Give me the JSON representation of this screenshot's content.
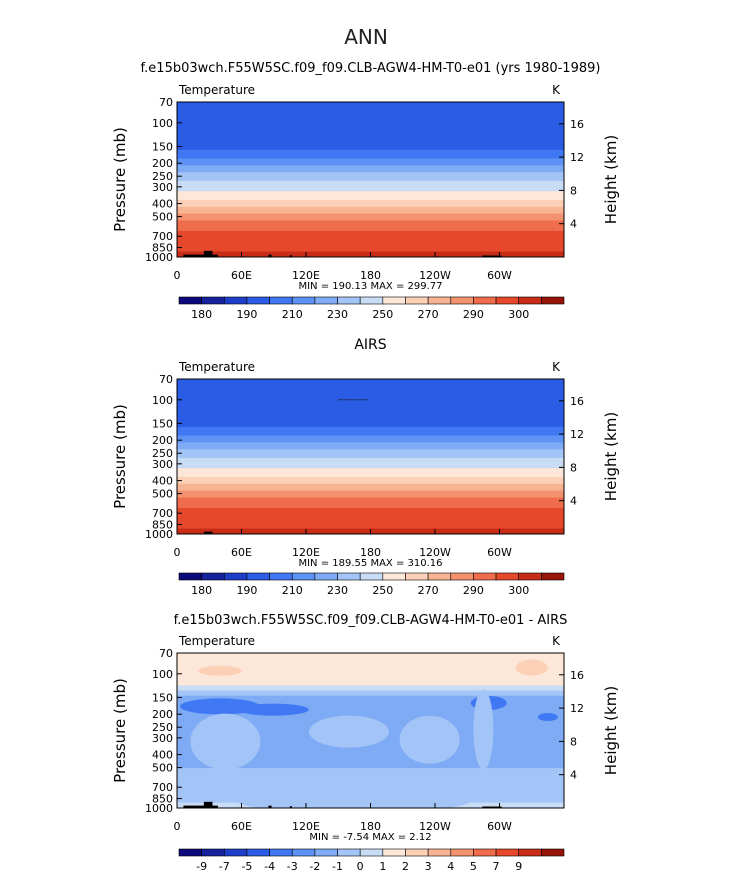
{
  "page_title": "ANN",
  "colors": {
    "temp_scale": [
      "#0c0a7a",
      "#16229c",
      "#1c3ec8",
      "#2a5ce6",
      "#3f78f2",
      "#5d93f4",
      "#7fabf5",
      "#a3c4f6",
      "#c9dcf6",
      "#fde7d8",
      "#fbd0b6",
      "#f8b393",
      "#f4916f",
      "#ef6d4c",
      "#e6482c",
      "#c72c17",
      "#961408"
    ],
    "diff_scale": [
      "#0c0a7a",
      "#16229c",
      "#1c3ec8",
      "#2a5ce6",
      "#3f78f2",
      "#5d93f4",
      "#7fabf5",
      "#a3c4f6",
      "#c9dcf6",
      "#fde7d8",
      "#fbd0b6",
      "#f8b393",
      "#f4916f",
      "#ef6d4c",
      "#e6482c",
      "#c72c17",
      "#961408"
    ],
    "terrain": "#000000"
  },
  "chart_data": [
    {
      "type": "heatmap",
      "title": "f.e15b03wch.F55W5SC.f09_f09.CLB-AGW4-HM-T0-e01 (yrs 1980-1989)",
      "left_label": "Temperature",
      "right_label": "K",
      "ylabel": "Pressure (mb)",
      "ylabel_right": "Height (km)",
      "x_ticks": [
        "0",
        "60E",
        "120E",
        "180",
        "120W",
        "60W"
      ],
      "x_tick_values": [
        0,
        60,
        120,
        180,
        240,
        300
      ],
      "xlim": [
        0,
        360
      ],
      "y_ticks": [
        "70",
        "100",
        "150",
        "200",
        "250",
        "300",
        "400",
        "500",
        "700",
        "850",
        "1000"
      ],
      "y_tick_values": [
        70,
        100,
        150,
        200,
        250,
        300,
        400,
        500,
        700,
        850,
        1000
      ],
      "ylim": [
        70,
        1000
      ],
      "y_scale": "log",
      "height_ticks": [
        "16",
        "12",
        "8",
        "4"
      ],
      "height_tick_values": [
        16,
        12,
        8,
        4
      ],
      "minmax_text": "MIN = 190.13   MAX = 299.77",
      "min": 190.13,
      "max": 299.77,
      "colorbar_labels": [
        "180",
        "190",
        "210",
        "230",
        "250",
        "270",
        "290",
        "300"
      ],
      "colorbar_label_positions": [
        1,
        3,
        5,
        7,
        9,
        11,
        13,
        15
      ],
      "levels_profile": [
        {
          "p": 70,
          "level": 3
        },
        {
          "p": 150,
          "level": 3
        },
        {
          "p": 200,
          "level": 5
        },
        {
          "p": 250,
          "level": 7
        },
        {
          "p": 300,
          "level": 8
        },
        {
          "p": 400,
          "level": 10
        },
        {
          "p": 500,
          "level": 12
        },
        {
          "p": 700,
          "level": 14
        },
        {
          "p": 850,
          "level": 14
        },
        {
          "p": 1000,
          "level": 15
        }
      ],
      "terrain": [
        {
          "lon0": 6,
          "lon1": 38,
          "p_top": 960
        },
        {
          "lon0": 25,
          "lon1": 33,
          "p_top": 900
        },
        {
          "lon0": 85,
          "lon1": 88,
          "p_top": 960
        },
        {
          "lon0": 105,
          "lon1": 107,
          "p_top": 970
        },
        {
          "lon0": 284,
          "lon1": 302,
          "p_top": 975
        }
      ]
    },
    {
      "type": "heatmap",
      "title": "AIRS",
      "left_label": "Temperature",
      "right_label": "K",
      "ylabel": "Pressure (mb)",
      "ylabel_right": "Height (km)",
      "x_ticks": [
        "0",
        "60E",
        "120E",
        "180",
        "120W",
        "60W"
      ],
      "x_tick_values": [
        0,
        60,
        120,
        180,
        240,
        300
      ],
      "xlim": [
        0,
        360
      ],
      "y_ticks": [
        "70",
        "100",
        "150",
        "200",
        "250",
        "300",
        "400",
        "500",
        "700",
        "850",
        "1000"
      ],
      "y_tick_values": [
        70,
        100,
        150,
        200,
        250,
        300,
        400,
        500,
        700,
        850,
        1000
      ],
      "ylim": [
        70,
        1000
      ],
      "y_scale": "log",
      "height_ticks": [
        "16",
        "12",
        "8",
        "4"
      ],
      "height_tick_values": [
        16,
        12,
        8,
        4
      ],
      "minmax_text": "MIN = 189.55   MAX = 310.16",
      "min": 189.55,
      "max": 310.16,
      "colorbar_labels": [
        "180",
        "190",
        "210",
        "230",
        "250",
        "270",
        "290",
        "300"
      ],
      "colorbar_label_positions": [
        1,
        3,
        5,
        7,
        9,
        11,
        13,
        15
      ],
      "levels_profile": [
        {
          "p": 70,
          "level": 3
        },
        {
          "p": 150,
          "level": 3
        },
        {
          "p": 200,
          "level": 5
        },
        {
          "p": 250,
          "level": 7
        },
        {
          "p": 300,
          "level": 8
        },
        {
          "p": 400,
          "level": 10
        },
        {
          "p": 500,
          "level": 12
        },
        {
          "p": 700,
          "level": 14
        },
        {
          "p": 850,
          "level": 14
        },
        {
          "p": 1000,
          "level": 15
        }
      ],
      "terrain": [
        {
          "lon0": 25,
          "lon1": 33,
          "p_top": 960
        }
      ]
    },
    {
      "type": "heatmap",
      "title": "f.e15b03wch.F55W5SC.f09_f09.CLB-AGW4-HM-T0-e01 - AIRS",
      "left_label": "Temperature",
      "right_label": "K",
      "ylabel": "Pressure (mb)",
      "ylabel_right": "Height (km)",
      "x_ticks": [
        "0",
        "60E",
        "120E",
        "180",
        "120W",
        "60W"
      ],
      "x_tick_values": [
        0,
        60,
        120,
        180,
        240,
        300
      ],
      "xlim": [
        0,
        360
      ],
      "y_ticks": [
        "70",
        "100",
        "150",
        "200",
        "250",
        "300",
        "400",
        "500",
        "700",
        "850",
        "1000"
      ],
      "y_tick_values": [
        70,
        100,
        150,
        200,
        250,
        300,
        400,
        500,
        700,
        850,
        1000
      ],
      "ylim": [
        70,
        1000
      ],
      "y_scale": "log",
      "height_ticks": [
        "16",
        "12",
        "8",
        "4"
      ],
      "height_tick_values": [
        16,
        12,
        8,
        4
      ],
      "minmax_text": "MIN =    -7.54   MAX =      2.12",
      "min": -7.54,
      "max": 2.12,
      "colorbar_labels": [
        "-9",
        "-7",
        "-5",
        "-4",
        "-3",
        "-2",
        "-1",
        "0",
        "1",
        "2",
        "3",
        "4",
        "5",
        "7",
        "9"
      ],
      "colorbar_label_positions": [
        1,
        2,
        3,
        4,
        5,
        6,
        7,
        8,
        9,
        10,
        11,
        12,
        13,
        14,
        15
      ],
      "levels_profile": [
        {
          "p": 70,
          "level": 9
        },
        {
          "p": 115,
          "level": 9
        },
        {
          "p": 130,
          "level": 8
        },
        {
          "p": 150,
          "level": 6
        },
        {
          "p": 250,
          "level": 6
        },
        {
          "p": 300,
          "level": 6
        },
        {
          "p": 850,
          "level": 7
        },
        {
          "p": 1000,
          "level": 8
        }
      ],
      "terrain": [
        {
          "lon0": 6,
          "lon1": 38,
          "p_top": 960
        },
        {
          "lon0": 25,
          "lon1": 33,
          "p_top": 900
        },
        {
          "lon0": 85,
          "lon1": 88,
          "p_top": 960
        },
        {
          "lon0": 105,
          "lon1": 107,
          "p_top": 970
        },
        {
          "lon0": 284,
          "lon1": 302,
          "p_top": 975
        }
      ]
    }
  ]
}
